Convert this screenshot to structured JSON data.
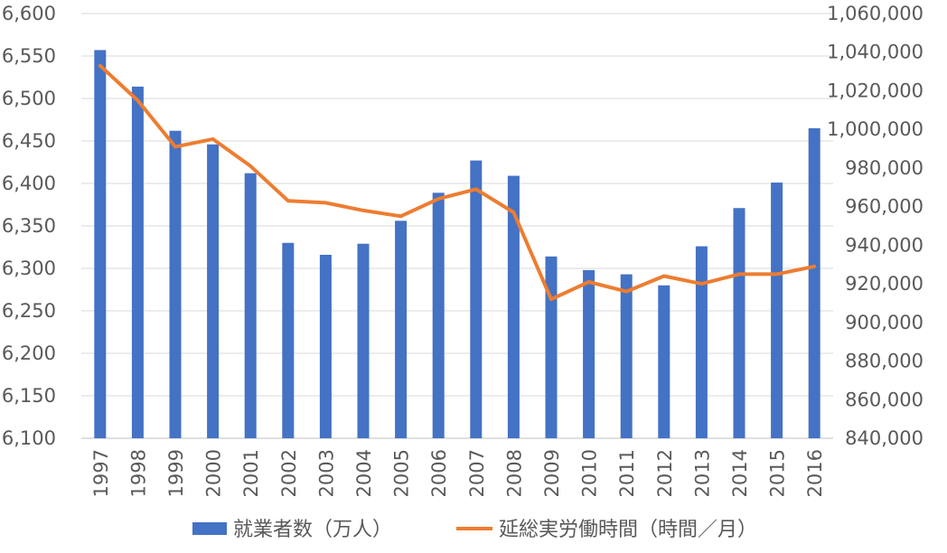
{
  "chart_data": {
    "type": "bar",
    "categories": [
      "1997",
      "1998",
      "1999",
      "2000",
      "2001",
      "2002",
      "2003",
      "2004",
      "2005",
      "2006",
      "2007",
      "2008",
      "2009",
      "2010",
      "2011",
      "2012",
      "2013",
      "2014",
      "2015",
      "2016"
    ],
    "series": [
      {
        "name": "就業者数（万人）",
        "type": "bar",
        "axis": "left",
        "color": "#4472C4",
        "values": [
          6557,
          6514,
          6462,
          6446,
          6412,
          6330,
          6316,
          6329,
          6356,
          6389,
          6427,
          6409,
          6314,
          6298,
          6293,
          6280,
          6326,
          6371,
          6401,
          6465
        ]
      },
      {
        "name": "延総実労働時間（時間／月）",
        "type": "line",
        "axis": "right",
        "color": "#ED7D31",
        "values": [
          1033000,
          1015000,
          991000,
          995000,
          981000,
          963000,
          962000,
          958000,
          955000,
          964000,
          969000,
          957000,
          912000,
          921000,
          916000,
          924000,
          920000,
          925000,
          925000,
          929000
        ]
      }
    ],
    "y_left": {
      "min": 6100,
      "max": 6600,
      "step": 50,
      "ticks": [
        "6,100",
        "6,150",
        "6,200",
        "6,250",
        "6,300",
        "6,350",
        "6,400",
        "6,450",
        "6,500",
        "6,550",
        "6,600"
      ]
    },
    "y_right": {
      "min": 840000,
      "max": 1060000,
      "step": 20000,
      "ticks": [
        "840,000",
        "860,000",
        "880,000",
        "900,000",
        "920,000",
        "940,000",
        "960,000",
        "980,000",
        "1,000,000",
        "1,020,000",
        "1,040,000",
        "1,060,000"
      ]
    },
    "grid": true,
    "legend": "bottom",
    "title": "",
    "xlabel": "",
    "ylabel": ""
  }
}
